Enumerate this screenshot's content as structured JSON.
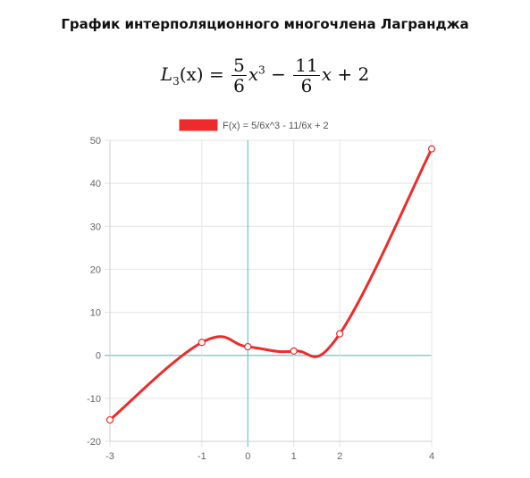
{
  "page": {
    "title": "График интерполяционного многочлена Лагранджа"
  },
  "formula": {
    "lhs_name": "L",
    "lhs_sub": "3",
    "lhs_arg": "(x)",
    "eq": "=",
    "frac1_num": "5",
    "frac1_den": "6",
    "var1": "x",
    "pow1": "3",
    "op1": "−",
    "frac2_num": "11",
    "frac2_den": "6",
    "var2": "x",
    "op2": "+",
    "const": "2"
  },
  "chart_data": {
    "type": "line",
    "legend": "F(x) = 5/6x^3 - 11/6x + 2",
    "legend_position": "top",
    "series_color": "#ee2b2b",
    "axis_line_color": "#6cc4cc",
    "grid": true,
    "xlim": [
      -3,
      4
    ],
    "ylim": [
      -20,
      50
    ],
    "x_ticks": [
      -3,
      -1,
      0,
      1,
      2,
      4
    ],
    "y_ticks": [
      -20,
      -10,
      0,
      10,
      20,
      30,
      40,
      50
    ],
    "x_gridlines": [
      -3,
      -1,
      0,
      1,
      2,
      4
    ],
    "curve_function": "5/6x^3 - 11/6x + 2",
    "points": [
      {
        "x": -3,
        "y": -15
      },
      {
        "x": -1,
        "y": 3
      },
      {
        "x": 0,
        "y": 2
      },
      {
        "x": 1,
        "y": 1
      },
      {
        "x": 2,
        "y": 5
      },
      {
        "x": 4,
        "y": 48
      }
    ]
  }
}
